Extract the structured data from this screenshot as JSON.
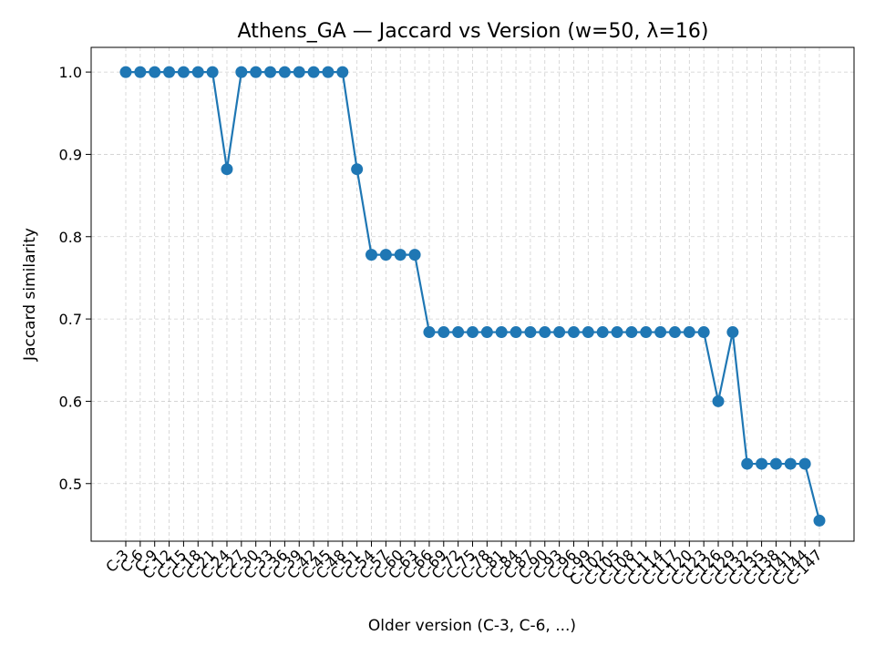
{
  "chart_data": {
    "type": "line",
    "title": "Athens_GA — Jaccard vs Version (w=50, λ=16)",
    "xlabel": "Older version (C-3, C-6, ...)",
    "ylabel": "Jaccard similarity",
    "ylim": [
      0.43,
      1.03
    ],
    "yticks": [
      0.5,
      0.6,
      0.7,
      0.8,
      0.9,
      1.0
    ],
    "grid": true,
    "color": "#1f77b4",
    "categories": [
      "C-3",
      "C-6",
      "C-9",
      "C-12",
      "C-15",
      "C-18",
      "C-21",
      "C-24",
      "C-27",
      "C-30",
      "C-33",
      "C-36",
      "C-39",
      "C-42",
      "C-45",
      "C-48",
      "C-51",
      "C-54",
      "C-57",
      "C-60",
      "C-63",
      "C-66",
      "C-69",
      "C-72",
      "C-75",
      "C-78",
      "C-81",
      "C-84",
      "C-87",
      "C-90",
      "C-93",
      "C-96",
      "C-99",
      "C-102",
      "C-105",
      "C-108",
      "C-111",
      "C-114",
      "C-117",
      "C-120",
      "C-123",
      "C-126",
      "C-129",
      "C-132",
      "C-135",
      "C-138",
      "C-141",
      "C-144",
      "C-147"
    ],
    "values": [
      1.0,
      1.0,
      1.0,
      1.0,
      1.0,
      1.0,
      1.0,
      0.882,
      1.0,
      1.0,
      1.0,
      1.0,
      1.0,
      1.0,
      1.0,
      1.0,
      0.882,
      0.778,
      0.778,
      0.778,
      0.778,
      0.684,
      0.684,
      0.684,
      0.684,
      0.684,
      0.684,
      0.684,
      0.684,
      0.684,
      0.684,
      0.684,
      0.684,
      0.684,
      0.684,
      0.684,
      0.684,
      0.684,
      0.684,
      0.684,
      0.684,
      0.6,
      0.684,
      0.524,
      0.524,
      0.524,
      0.524,
      0.524,
      0.455
    ]
  }
}
